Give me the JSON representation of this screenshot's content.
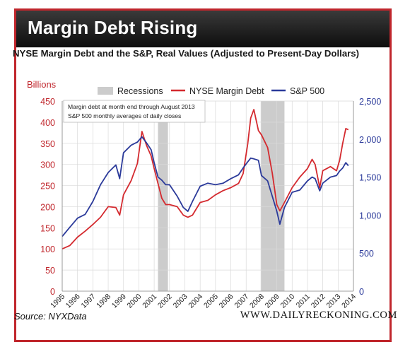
{
  "header": {
    "banner_title": "Margin Debt Rising",
    "chart_title": "NYSE Margin Debt and the S&P, Real Values (Adjusted to Present-Day Dollars)"
  },
  "footer": {
    "source": "Source: NYXData",
    "site": "WWW.DAILYRECKONING.COM"
  },
  "colors": {
    "margin_debt": "#d42a2f",
    "sp500": "#2b3a9a",
    "recession": "#cccccc",
    "left_axis": "#c0262c",
    "right_axis": "#2b3a9a"
  },
  "chart_data": {
    "type": "line",
    "ylabel": "Billions",
    "y_left_lim": [
      0,
      450
    ],
    "y_left_ticks": [
      "0",
      "50",
      "100",
      "150",
      "200",
      "250",
      "300",
      "350",
      "400",
      "450"
    ],
    "y_right_lim": [
      0,
      2500
    ],
    "y_right_ticks": [
      "0",
      "500",
      "1,000",
      "1,500",
      "2,000",
      "2,500"
    ],
    "x_lim": [
      1995.0,
      2014.0
    ],
    "x_ticks": [
      "1995",
      "1996",
      "1997",
      "1998",
      "1999",
      "2000",
      "2001",
      "2002",
      "2003",
      "2004",
      "2005",
      "2006",
      "2007",
      "2008",
      "2009",
      "2010",
      "2011",
      "2012",
      "2013",
      "2014"
    ],
    "grid": true,
    "legend_placement": "top",
    "legend": {
      "recessions": "Recessions",
      "margin_debt": "NYSE Margin Debt",
      "sp500": "S&P 500"
    },
    "annotation": [
      "Margin debt at month end through August 2013",
      "S&P 500 monthly averages of daily closes"
    ],
    "recessions": [
      [
        2001.25,
        2001.9
      ],
      [
        2007.95,
        2009.5
      ]
    ],
    "series": [
      {
        "name": "NYSE Margin Debt",
        "axis": "left",
        "x": [
          1995.0,
          1995.5,
          1996.0,
          1996.5,
          1997.0,
          1997.5,
          1998.0,
          1998.5,
          1998.75,
          1999.0,
          1999.5,
          1999.9,
          2000.2,
          2000.5,
          2000.8,
          2001.0,
          2001.25,
          2001.5,
          2001.75,
          2002.0,
          2002.5,
          2002.9,
          2003.2,
          2003.5,
          2004.0,
          2004.5,
          2005.0,
          2005.5,
          2006.0,
          2006.5,
          2006.8,
          2007.1,
          2007.3,
          2007.5,
          2007.8,
          2008.0,
          2008.4,
          2008.7,
          2009.0,
          2009.2,
          2009.5,
          2010.0,
          2010.5,
          2011.0,
          2011.3,
          2011.5,
          2011.8,
          2012.0,
          2012.5,
          2012.9,
          2013.1,
          2013.3,
          2013.5,
          2013.67
        ],
        "values": [
          100,
          108,
          128,
          142,
          158,
          175,
          200,
          198,
          180,
          228,
          262,
          302,
          378,
          345,
          320,
          290,
          255,
          220,
          205,
          205,
          200,
          180,
          175,
          180,
          210,
          215,
          228,
          238,
          245,
          255,
          278,
          348,
          410,
          430,
          380,
          370,
          340,
          280,
          205,
          190,
          210,
          245,
          270,
          290,
          312,
          300,
          245,
          285,
          295,
          285,
          310,
          350,
          385,
          382
        ]
      },
      {
        "name": "S&P 500",
        "axis": "right",
        "x": [
          1995.0,
          1995.5,
          1996.0,
          1996.5,
          1997.0,
          1997.5,
          1998.0,
          1998.5,
          1998.75,
          1999.0,
          1999.5,
          1999.9,
          2000.2,
          2000.5,
          2000.8,
          2001.0,
          2001.25,
          2001.5,
          2001.75,
          2002.0,
          2002.5,
          2002.9,
          2003.2,
          2003.5,
          2004.0,
          2004.5,
          2005.0,
          2005.5,
          2006.0,
          2006.5,
          2006.8,
          2007.1,
          2007.3,
          2007.5,
          2007.8,
          2008.0,
          2008.4,
          2008.7,
          2009.0,
          2009.2,
          2009.5,
          2010.0,
          2010.5,
          2011.0,
          2011.3,
          2011.5,
          2011.8,
          2012.0,
          2012.5,
          2012.9,
          2013.1,
          2013.3,
          2013.5,
          2013.67
        ],
        "values": [
          720,
          840,
          960,
          1010,
          1180,
          1400,
          1560,
          1660,
          1480,
          1820,
          1920,
          1960,
          2030,
          1950,
          1860,
          1690,
          1500,
          1460,
          1400,
          1400,
          1250,
          1100,
          1050,
          1180,
          1380,
          1420,
          1400,
          1420,
          1480,
          1530,
          1620,
          1700,
          1750,
          1740,
          1720,
          1520,
          1450,
          1250,
          1050,
          880,
          1100,
          1300,
          1330,
          1450,
          1500,
          1480,
          1320,
          1420,
          1500,
          1520,
          1580,
          1620,
          1690,
          1650
        ]
      }
    ]
  }
}
